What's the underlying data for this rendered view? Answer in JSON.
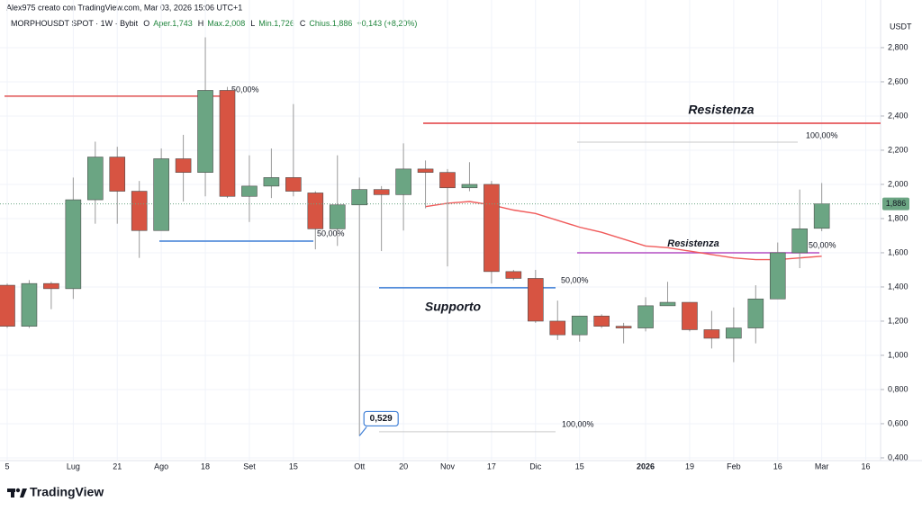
{
  "header": {
    "credit": "Alex975 creato con TradingView.com, Mar 03, 2026 15:06 UTC+1",
    "symbol": "MORPHOUSDT SPOT · 1W · Bybit",
    "ohlc": [
      {
        "key": "O",
        "text": "Aper.1,743"
      },
      {
        "key": "H",
        "text": "Max.2,008"
      },
      {
        "key": "L",
        "text": "Min.1,726"
      },
      {
        "key": "C",
        "text": "Chius.1,886"
      }
    ],
    "change": "+0,143 (+8,20%)"
  },
  "chart_data": {
    "type": "candlestick",
    "categories": [
      "5",
      null,
      null,
      "Lug",
      null,
      "21",
      null,
      "Ago",
      null,
      "18",
      null,
      "Set",
      null,
      "15",
      null,
      null,
      "Ott",
      null,
      "20",
      null,
      "Nov",
      null,
      "17",
      null,
      "Dic",
      null,
      "15",
      null,
      null,
      "2026",
      null,
      "19",
      null,
      "Feb",
      null,
      "16",
      null,
      "Mar",
      null,
      "16"
    ],
    "open": [
      1.41,
      1.17,
      1.42,
      1.39,
      1.91,
      2.16,
      1.96,
      1.73,
      2.15,
      2.07,
      2.55,
      1.93,
      1.99,
      2.04,
      1.95,
      1.74,
      1.88,
      1.97,
      1.94,
      2.09,
      2.07,
      1.98,
      2.0,
      1.49,
      1.45,
      1.2,
      1.12,
      1.23,
      1.17,
      1.16,
      1.29,
      1.31,
      1.15,
      1.1,
      1.16,
      1.33,
      1.6,
      1.743,
      null,
      null
    ],
    "high": [
      1.42,
      1.44,
      1.43,
      2.04,
      2.25,
      2.22,
      2.02,
      2.21,
      2.29,
      2.86,
      2.57,
      2.17,
      2.21,
      2.47,
      1.96,
      2.17,
      2.04,
      1.99,
      2.24,
      2.14,
      2.09,
      2.13,
      2.02,
      1.5,
      1.5,
      1.32,
      1.23,
      1.24,
      1.19,
      1.34,
      1.43,
      1.31,
      1.26,
      1.28,
      1.41,
      1.66,
      1.97,
      2.008,
      null,
      null
    ],
    "low": [
      1.16,
      1.16,
      1.27,
      1.33,
      1.77,
      1.77,
      1.57,
      1.73,
      1.9,
      1.93,
      1.92,
      1.78,
      1.92,
      1.93,
      1.62,
      1.64,
      0.529,
      1.61,
      1.73,
      1.86,
      1.52,
      1.96,
      1.42,
      1.44,
      1.19,
      1.09,
      1.08,
      1.16,
      1.07,
      1.14,
      1.29,
      1.14,
      1.04,
      0.96,
      1.07,
      1.33,
      1.51,
      1.726,
      null,
      null
    ],
    "close": [
      1.17,
      1.42,
      1.39,
      1.91,
      2.16,
      1.96,
      1.73,
      2.15,
      2.07,
      2.55,
      1.93,
      1.99,
      2.04,
      1.96,
      1.74,
      1.88,
      1.97,
      1.94,
      2.09,
      2.07,
      1.98,
      2.0,
      1.49,
      1.45,
      1.2,
      1.12,
      1.23,
      1.17,
      1.16,
      1.29,
      1.31,
      1.15,
      1.1,
      1.16,
      1.33,
      1.6,
      1.74,
      1.886,
      null,
      null
    ],
    "up_color": "#6ba583",
    "down_color": "#d75442",
    "moving_average": {
      "color": "#f05a5a",
      "values": [
        null,
        null,
        null,
        null,
        null,
        null,
        null,
        null,
        null,
        null,
        null,
        null,
        null,
        null,
        null,
        null,
        null,
        null,
        null,
        1.87,
        1.89,
        1.9,
        1.88,
        1.85,
        1.83,
        1.79,
        1.75,
        1.72,
        1.68,
        1.64,
        1.63,
        1.61,
        1.59,
        1.57,
        1.56,
        1.56,
        1.57,
        1.58,
        null,
        null
      ]
    },
    "y_unit": "USDT",
    "ylim": [
      0.384,
      2.984
    ],
    "yticks": [
      {
        "value": 0.4,
        "label": "0,400"
      },
      {
        "value": 0.6,
        "label": "0,600"
      },
      {
        "value": 0.8,
        "label": "0,800"
      },
      {
        "value": 1.0,
        "label": "1,000"
      },
      {
        "value": 1.2,
        "label": "1,200"
      },
      {
        "value": 1.4,
        "label": "1,400"
      },
      {
        "value": 1.6,
        "label": "1,600"
      },
      {
        "value": 1.8,
        "label": "1,800"
      },
      {
        "value": 2.0,
        "label": "2,000"
      },
      {
        "value": 2.2,
        "label": "2,200"
      },
      {
        "value": 2.4,
        "label": "2,400"
      },
      {
        "value": 2.6,
        "label": "2,600"
      },
      {
        "value": 2.8,
        "label": "2,800"
      }
    ],
    "grid": true,
    "last_price": {
      "value": 1.886,
      "label": "1,886"
    },
    "low_callout": {
      "value": 0.529,
      "label": "0,529"
    },
    "levels": [
      {
        "value": 2.516,
        "label": "50,00%",
        "color": "#e05252"
      },
      {
        "value": 2.358,
        "label": "Resistenza",
        "color": "#e23b3f"
      },
      {
        "value": 2.247,
        "label": "100,00%",
        "color": "#c9c9c9"
      },
      {
        "value": 1.668,
        "label": "50,00%",
        "color": "#3f7fd6"
      },
      {
        "value": 1.6,
        "label": "Resistenza",
        "extra_label": "50,00%",
        "color": "#b44fc4"
      },
      {
        "value": 1.395,
        "label": "Supporto",
        "extra_label": "50,00%",
        "color": "#3f7fd6"
      },
      {
        "value": 0.553,
        "label": "100,00%",
        "color": "#c9c9c9"
      }
    ]
  },
  "footer": {
    "brand": "TradingView"
  }
}
